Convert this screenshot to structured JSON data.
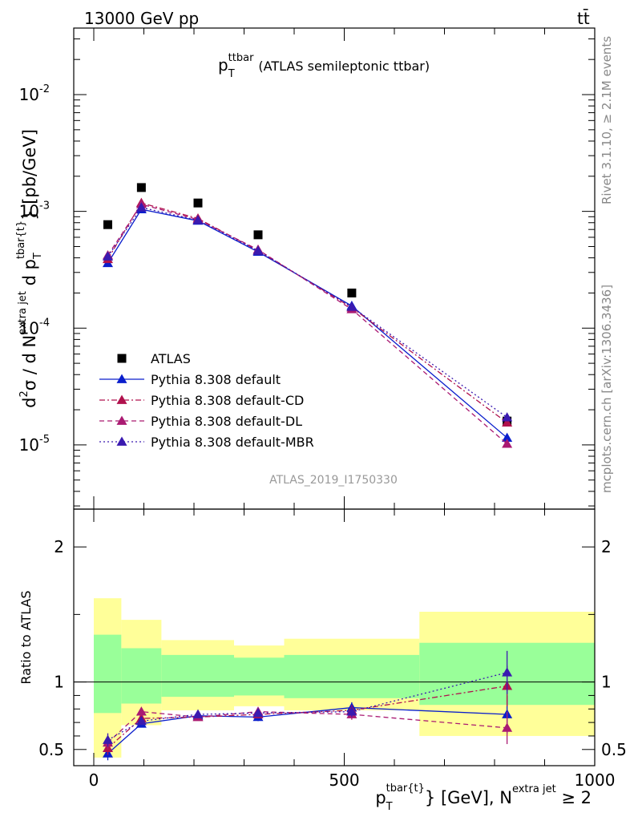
{
  "header": {
    "left": "13000 GeV pp",
    "right": "tt̄"
  },
  "side_labels": {
    "top": "Rivet 3.1.10, ≥ 2.1M events",
    "bottom": "mcplots.cern.ch [arXiv:1306.3436]"
  },
  "chart_data": {
    "type": "scatter",
    "title_main": "p",
    "title_sub": "T",
    "title_sup": "ttbar",
    "title_rest": "(ATLAS semileptonic ttbar)",
    "analysis_id": "ATLAS_2019_I1750330",
    "upper_ylabel_parts": {
      "a": "d",
      "a_sup": "2",
      "b": "σ  /  d N",
      "b_sup": "extra jet",
      "c": " d p",
      "c_sub": "T",
      "c_sup": "tbar{t}",
      "d": "} [pb/GeV]"
    },
    "lower_ylabel": "Ratio to ATLAS",
    "xlabel_parts": {
      "a": "p",
      "a_sub": "T",
      "a_sup": "tbar{t}",
      "b": "} [GeV], N",
      "b_sup": "extra jet",
      "c": " ≥ 2"
    },
    "x_ticks": [
      "0",
      "500",
      "1000"
    ],
    "upper_y_ticks": [
      {
        "base": "10",
        "exp": "-5"
      },
      {
        "base": "10",
        "exp": "-4"
      },
      {
        "base": "10",
        "exp": "-3"
      },
      {
        "base": "10",
        "exp": "-2"
      }
    ],
    "lower_y_ticks": [
      "0.5",
      "1",
      "2"
    ],
    "xlim": [
      -40,
      1000
    ],
    "upper_ylog_range": [
      -5.55,
      -1.43
    ],
    "lower_ylim": [
      0.38,
      2.28
    ],
    "bins": [
      {
        "lo": 0,
        "hi": 55
      },
      {
        "lo": 55,
        "hi": 135
      },
      {
        "lo": 135,
        "hi": 280
      },
      {
        "lo": 280,
        "hi": 380
      },
      {
        "lo": 380,
        "hi": 650
      },
      {
        "lo": 650,
        "hi": 1000
      }
    ],
    "band_green_hi": [
      1.35,
      1.25,
      1.2,
      1.18,
      1.2,
      1.29
    ],
    "band_green_lo": [
      0.77,
      0.84,
      0.89,
      0.9,
      0.88,
      0.83
    ],
    "band_yellow_hi": [
      1.62,
      1.46,
      1.31,
      1.27,
      1.32,
      1.52
    ],
    "band_yellow_lo": [
      0.44,
      0.68,
      0.79,
      0.82,
      0.79,
      0.6
    ],
    "x": [
      28,
      95,
      208,
      328,
      515,
      825
    ],
    "atlas": [
      0.00077,
      0.0016,
      0.00118,
      0.00063,
      0.0002,
      1.6e-05
    ],
    "legend_position": "lower-left",
    "series": [
      {
        "name": "ATLAS",
        "color": "#000000",
        "marker": "square",
        "line": "none",
        "values": [
          0.00077,
          0.0016,
          0.00118,
          0.00063,
          0.0002,
          1.6e-05
        ]
      },
      {
        "name": "Pythia 8.308 default",
        "color": "#0a1ecc",
        "marker": "triangle",
        "line": "solid",
        "values": [
          0.00036,
          0.00104,
          0.00083,
          0.00045,
          0.000155,
          1.15e-05
        ],
        "ratio": [
          0.47,
          0.69,
          0.75,
          0.74,
          0.81,
          0.76
        ],
        "ratio_err": [
          0.05,
          0.02,
          0.02,
          0.03,
          0.04,
          0.14
        ]
      },
      {
        "name": "Pythia 8.308 default-CD",
        "color": "#b0114d",
        "marker": "triangle",
        "line": "dashdot",
        "values": [
          0.00039,
          0.00118,
          0.00087,
          0.00046,
          0.00015,
          1.55e-05
        ],
        "ratio": [
          0.51,
          0.73,
          0.74,
          0.76,
          0.79,
          0.97
        ],
        "ratio_err": [
          0.05,
          0.03,
          0.02,
          0.03,
          0.04,
          0.15
        ]
      },
      {
        "name": "Pythia 8.308 default-DL",
        "color": "#aa1a72",
        "marker": "triangle",
        "line": "dashed",
        "values": [
          0.00042,
          0.00115,
          0.00085,
          0.00047,
          0.000145,
          1.02e-05
        ],
        "ratio": [
          0.55,
          0.78,
          0.74,
          0.78,
          0.76,
          0.66
        ],
        "ratio_err": [
          0.05,
          0.03,
          0.02,
          0.03,
          0.04,
          0.12
        ]
      },
      {
        "name": "Pythia 8.308 default-MBR",
        "color": "#3a1ab0",
        "marker": "triangle",
        "line": "dotted",
        "values": [
          0.00041,
          0.00108,
          0.00084,
          0.00046,
          0.000152,
          1.72e-05
        ],
        "ratio": [
          0.57,
          0.71,
          0.76,
          0.77,
          0.78,
          1.07
        ],
        "ratio_err": [
          0.05,
          0.02,
          0.02,
          0.03,
          0.04,
          0.16
        ]
      }
    ]
  }
}
